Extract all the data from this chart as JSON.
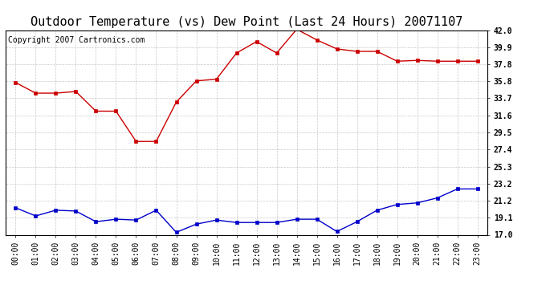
{
  "title": "Outdoor Temperature (vs) Dew Point (Last 24 Hours) 20071107",
  "copyright": "Copyright 2007 Cartronics.com",
  "x_labels": [
    "00:00",
    "01:00",
    "02:00",
    "03:00",
    "04:00",
    "05:00",
    "06:00",
    "07:00",
    "08:00",
    "09:00",
    "10:00",
    "11:00",
    "12:00",
    "13:00",
    "14:00",
    "15:00",
    "16:00",
    "17:00",
    "18:00",
    "19:00",
    "20:00",
    "21:00",
    "22:00",
    "23:00"
  ],
  "temp_data": [
    35.6,
    34.3,
    34.3,
    34.5,
    32.1,
    32.1,
    28.4,
    28.4,
    33.2,
    35.8,
    36.0,
    39.2,
    40.6,
    39.2,
    42.1,
    40.8,
    39.7,
    39.4,
    39.4,
    38.2,
    38.3,
    38.2,
    38.2,
    38.2
  ],
  "dew_data": [
    20.3,
    19.3,
    20.0,
    19.9,
    18.6,
    18.9,
    18.8,
    20.0,
    17.3,
    18.3,
    18.8,
    18.5,
    18.5,
    18.5,
    18.9,
    18.9,
    17.4,
    18.6,
    20.0,
    20.7,
    20.9,
    21.5,
    22.6,
    22.6
  ],
  "temp_color": "#cc0000",
  "dew_color": "#0000cc",
  "bg_color": "#ffffff",
  "plot_bg": "#ffffff",
  "grid_color": "#bbbbbb",
  "ylim": [
    17.0,
    42.0
  ],
  "yticks": [
    17.0,
    19.1,
    21.2,
    23.2,
    25.3,
    27.4,
    29.5,
    31.6,
    33.7,
    35.8,
    37.8,
    39.9,
    42.0
  ],
  "title_fontsize": 11,
  "copyright_fontsize": 7,
  "tick_fontsize": 7,
  "marker_size": 3
}
